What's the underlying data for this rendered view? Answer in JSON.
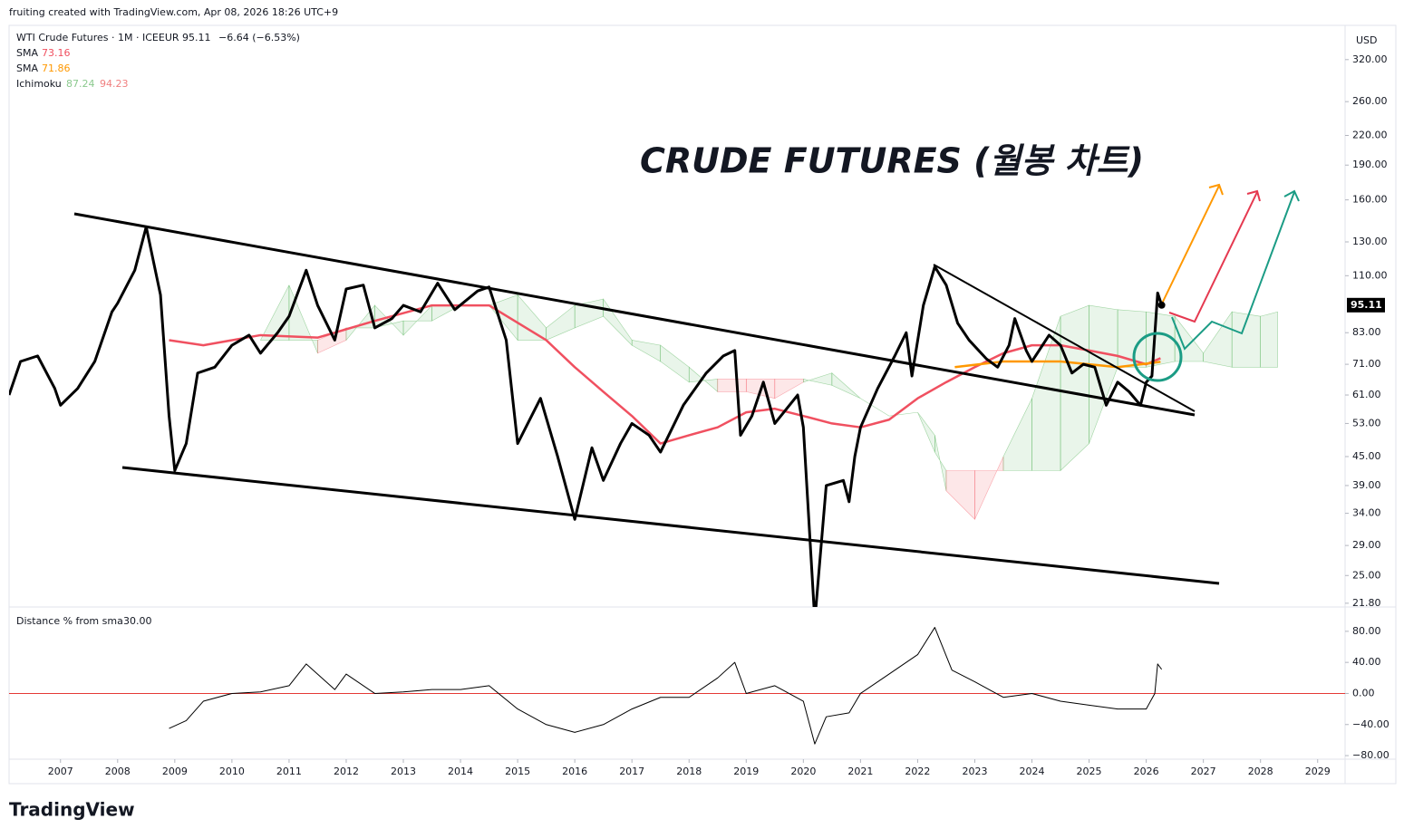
{
  "header": {
    "credit": "fruiting created with TradingView.com, Apr 08, 2026 18:26 UTC+9",
    "symbol": "WTI Crude Futures · 1M · ICEEUR",
    "last": "95.11",
    "change": "−6.64 (−6.53%)",
    "sma1_name": "SMA",
    "sma1_value": "73.16",
    "sma2_name": "SMA",
    "sma2_value": "71.86",
    "ichimoku_name": "Ichimoku",
    "ichimoku_a": "87.24",
    "ichimoku_b": "94.23",
    "currency": "USD"
  },
  "footer": {
    "brand": "TradingView"
  },
  "chart_data": [
    {
      "type": "line",
      "title": "CRUDE FUTURES (월봉 차트)",
      "log_scale": true,
      "xlim": [
        2006.1,
        2029.48
      ],
      "xticks": [
        2007,
        2008,
        2009,
        2010,
        2011,
        2012,
        2013,
        2014,
        2015,
        2016,
        2017,
        2018,
        2019,
        2020,
        2021,
        2022,
        2023,
        2024,
        2025,
        2026,
        2027,
        2028,
        2029
      ],
      "ylim": [
        21.4,
        379
      ],
      "yticks": [
        {
          "value": 320,
          "label": "320.00"
        },
        {
          "value": 260,
          "label": "260.00"
        },
        {
          "value": 220,
          "label": "220.00"
        },
        {
          "value": 190,
          "label": "190.00"
        },
        {
          "value": 160,
          "label": "160.00"
        },
        {
          "value": 130,
          "label": "130.00"
        },
        {
          "value": 110,
          "label": "110.00"
        },
        {
          "value": 83,
          "label": "83.00"
        },
        {
          "value": 71,
          "label": "71.00"
        },
        {
          "value": 61,
          "label": "61.00"
        },
        {
          "value": 53,
          "label": "53.00"
        },
        {
          "value": 45,
          "label": "45.00"
        },
        {
          "value": 39,
          "label": "39.00"
        },
        {
          "value": 34,
          "label": "34.00"
        },
        {
          "value": 29,
          "label": "29.00"
        },
        {
          "value": 25,
          "label": "25.00"
        },
        {
          "value": 21.8,
          "label": "21.80"
        }
      ],
      "series": [
        {
          "name": "WTI Crude Futures",
          "color": "#000000",
          "x": [
            2006.1,
            2006.3,
            2006.6,
            2006.9,
            2007.0,
            2007.3,
            2007.6,
            2007.9,
            2008.0,
            2008.3,
            2008.5,
            2008.75,
            2008.9,
            2009.0,
            2009.2,
            2009.4,
            2009.7,
            2010.0,
            2010.3,
            2010.5,
            2010.8,
            2011.0,
            2011.3,
            2011.5,
            2011.8,
            2012.0,
            2012.3,
            2012.5,
            2012.8,
            2013.0,
            2013.3,
            2013.6,
            2013.9,
            2014.3,
            2014.5,
            2014.8,
            2015.0,
            2015.4,
            2015.7,
            2016.0,
            2016.3,
            2016.5,
            2016.8,
            2017.0,
            2017.3,
            2017.5,
            2017.9,
            2018.3,
            2018.6,
            2018.8,
            2018.9,
            2019.1,
            2019.3,
            2019.5,
            2019.9,
            2020.0,
            2020.2,
            2020.4,
            2020.7,
            2020.8,
            2020.9,
            2021.0,
            2021.3,
            2021.6,
            2021.8,
            2021.9,
            2022.1,
            2022.3,
            2022.5,
            2022.7,
            2022.9,
            2023.2,
            2023.4,
            2023.6,
            2023.7,
            2023.9,
            2024.0,
            2024.3,
            2024.5,
            2024.7,
            2024.9,
            2025.1,
            2025.3,
            2025.5,
            2025.7,
            2025.9,
            2026.0,
            2026.1,
            2026.2,
            2026.27
          ],
          "values": [
            61,
            72,
            74,
            63,
            58,
            63,
            72,
            92,
            96,
            113,
            140,
            100,
            55,
            42,
            48,
            68,
            70,
            78,
            82,
            75,
            83,
            90,
            113,
            95,
            80,
            103,
            105,
            85,
            89,
            95,
            92,
            106,
            93,
            102,
            104,
            80,
            48,
            60,
            45,
            33,
            47,
            40,
            48,
            53,
            50,
            46,
            58,
            68,
            74,
            76,
            50,
            55,
            65,
            53,
            61,
            52,
            20,
            39,
            40,
            36,
            45,
            52,
            63,
            74,
            83,
            67,
            95,
            115,
            105,
            87,
            80,
            73,
            70,
            78,
            89,
            76,
            72,
            82,
            78,
            68,
            71,
            70,
            58,
            65,
            62,
            58,
            65,
            67,
            101,
            95.11
          ]
        },
        {
          "name": "SMA",
          "color": "#f05060",
          "x": [
            2008.9,
            2009.5,
            2010.5,
            2011.5,
            2012.5,
            2013.5,
            2014.5,
            2015.5,
            2016.0,
            2016.5,
            2017.0,
            2017.5,
            2018.0,
            2018.5,
            2019.0,
            2019.5,
            2020.0,
            2020.5,
            2021.0,
            2021.5,
            2022.0,
            2022.5,
            2023.0,
            2023.5,
            2024.0,
            2024.5,
            2025.0,
            2025.5,
            2026.0,
            2026.25
          ],
          "values": [
            80,
            78,
            82,
            81,
            88,
            95,
            95,
            80,
            70,
            62,
            55,
            48,
            50,
            52,
            56,
            57,
            55,
            53,
            52,
            54,
            60,
            65,
            70,
            75,
            78,
            78,
            76,
            74,
            71,
            73.16
          ]
        },
        {
          "name": "SMA",
          "color": "#ff9800",
          "x": [
            2022.65,
            2023.5,
            2024.5,
            2025.5,
            2026.25
          ],
          "values": [
            70,
            72,
            72,
            70,
            71.86
          ]
        }
      ],
      "cloud": {
        "x": [
          2010.5,
          2011.0,
          2011.5,
          2012.0,
          2012.5,
          2013.0,
          2013.5,
          2014.0,
          2014.5,
          2015.0,
          2015.5,
          2016.0,
          2016.5,
          2017.0,
          2017.5,
          2018.0,
          2018.5,
          2019.0,
          2019.5,
          2020.0,
          2020.5,
          2021.0,
          2021.5,
          2022.0,
          2022.3,
          2022.5,
          2023.0,
          2023.5,
          2024.0,
          2024.5,
          2025.0,
          2025.5,
          2026.0,
          2026.5,
          2027.0,
          2027.5,
          2028.0,
          2028.3
        ],
        "spanA": [
          80,
          105,
          75,
          80,
          95,
          82,
          95,
          95,
          95,
          100,
          85,
          95,
          98,
          80,
          78,
          70,
          62,
          62,
          60,
          65,
          68,
          60,
          55,
          56,
          50,
          38,
          33,
          45,
          60,
          90,
          95,
          93,
          92,
          90,
          75,
          92,
          90,
          92
        ],
        "spanB": [
          80,
          80,
          80,
          85,
          85,
          88,
          88,
          95,
          95,
          80,
          80,
          85,
          90,
          78,
          72,
          65,
          66,
          66,
          66,
          66,
          64,
          60,
          55,
          56,
          46,
          42,
          42,
          42,
          42,
          42,
          48,
          70,
          70,
          72,
          72,
          70,
          70,
          70
        ]
      }
    },
    {
      "type": "line",
      "title": "Distance % from sma",
      "parameter": "30.00",
      "xlim": [
        2006.1,
        2029.48
      ],
      "ylim": [
        -84.6,
        109
      ],
      "yticks": [
        {
          "value": 80,
          "label": "80.00"
        },
        {
          "value": 40,
          "label": "40.00"
        },
        {
          "value": 0,
          "label": "0.00"
        },
        {
          "value": -40,
          "label": "−40.00"
        },
        {
          "value": -80,
          "label": "−80.00"
        }
      ],
      "series": [
        {
          "name": "Distance",
          "color": "#000000",
          "x": [
            2008.9,
            2009.2,
            2009.5,
            2010.0,
            2010.5,
            2011.0,
            2011.3,
            2011.8,
            2012.0,
            2012.5,
            2013.0,
            2013.5,
            2014.0,
            2014.5,
            2015.0,
            2015.5,
            2016.0,
            2016.5,
            2017.0,
            2017.5,
            2018.0,
            2018.5,
            2018.8,
            2019.0,
            2019.5,
            2020.0,
            2020.2,
            2020.4,
            2020.8,
            2021.0,
            2021.5,
            2022.0,
            2022.3,
            2022.6,
            2023.0,
            2023.5,
            2024.0,
            2024.5,
            2025.0,
            2025.5,
            2026.0,
            2026.15,
            2026.2,
            2026.27
          ],
          "values": [
            -45,
            -35,
            -10,
            0,
            2,
            10,
            38,
            5,
            25,
            0,
            2,
            5,
            5,
            10,
            -20,
            -40,
            -50,
            -40,
            -20,
            -5,
            -5,
            20,
            40,
            0,
            10,
            -10,
            -65,
            -30,
            -25,
            0,
            25,
            50,
            85,
            30,
            15,
            -5,
            0,
            -10,
            -15,
            -20,
            -20,
            0,
            38,
            31
          ]
        }
      ]
    }
  ]
}
